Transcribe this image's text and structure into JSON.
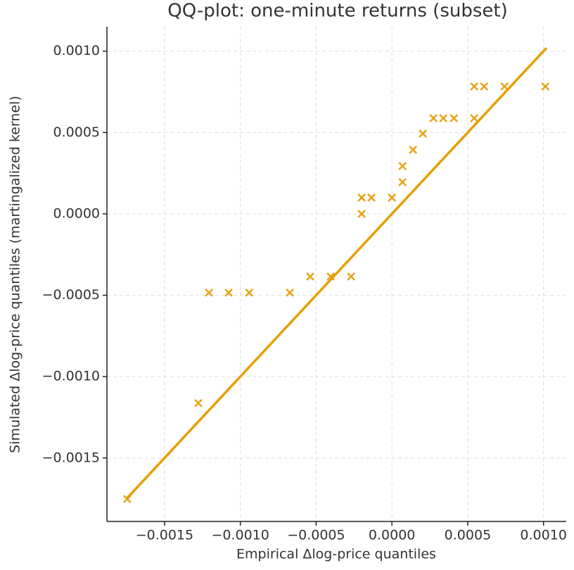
{
  "chart_data": {
    "type": "scatter",
    "title": "QQ-plot: one-minute returns (subset)",
    "x_label": "Empirical Δlog-price quantiles",
    "y_label": "Simulated Δlog-price quantiles (martingalized kernel)",
    "series": [
      {
        "color": "#e8a317",
        "marker": "x",
        "x": [
          -0.001746,
          -0.001277,
          -0.001207,
          -0.001077,
          -0.000942,
          -0.000673,
          -0.000539,
          -0.000404,
          -0.000269,
          -0.0002,
          -0.0002,
          -0.000135,
          0,
          7e-05,
          7e-05,
          0.000139,
          0.000204,
          0.000274,
          0.000339,
          0.000409,
          0.000543,
          0.000543,
          0.000608,
          0.000743,
          0.001012
        ],
        "values": [
          -0.001752,
          -0.001163,
          -0.000484,
          -0.000484,
          -0.000484,
          -0.000484,
          -0.000385,
          -0.000385,
          -0.000385,
          0,
          0.0001,
          0.0001,
          0.0001,
          0.000195,
          0.000294,
          0.000394,
          0.000493,
          0.000588,
          0.000588,
          0.000588,
          0.000588,
          0.000783,
          0.000783,
          0.000783,
          0.000783
        ]
      }
    ],
    "reference_line": {
      "color": "#e69f00",
      "x": [
        -0.00175,
        0.00102
      ],
      "values": [
        -0.00175,
        0.00102
      ]
    },
    "xlim": [
      -0.00188,
      0.00115
    ],
    "ylim": [
      -0.00189,
      0.00115
    ],
    "xticks": [
      {
        "value": -0.0015,
        "label": "−0.0015"
      },
      {
        "value": -0.001,
        "label": "−0.0010"
      },
      {
        "value": -0.0005,
        "label": "−0.0005"
      },
      {
        "value": 0,
        "label": "0.0000"
      },
      {
        "value": 0.0005,
        "label": "0.0005"
      },
      {
        "value": 0.001,
        "label": "0.0010"
      }
    ],
    "yticks": [
      {
        "value": -0.0015,
        "label": "−0.0015"
      },
      {
        "value": -0.001,
        "label": "−0.0010"
      },
      {
        "value": -0.0005,
        "label": "−0.0005"
      },
      {
        "value": 0,
        "label": "0.0000"
      },
      {
        "value": 0.0005,
        "label": "0.0005"
      },
      {
        "value": 0.001,
        "label": "0.0010"
      }
    ],
    "grid": true
  }
}
